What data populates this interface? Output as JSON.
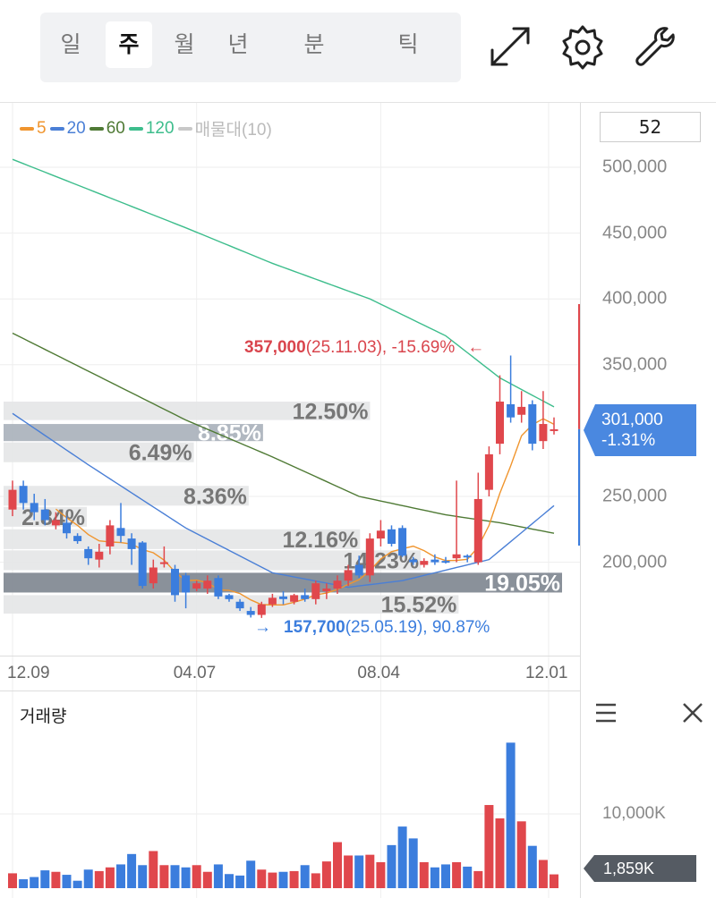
{
  "toolbar": {
    "tabs": [
      {
        "label": "일"
      },
      {
        "label": "주",
        "selected": true
      },
      {
        "label": "월"
      },
      {
        "label": "년"
      },
      {
        "label": "분"
      },
      {
        "label": "틱"
      }
    ],
    "icons": [
      "expand-icon",
      "gear-icon",
      "wrench-icon"
    ]
  },
  "legend": [
    {
      "label": "5",
      "color": "#f0952e"
    },
    {
      "label": "20",
      "color": "#4a7fd6"
    },
    {
      "label": "60",
      "color": "#4f7a35"
    },
    {
      "label": "120",
      "color": "#3dbd8c"
    },
    {
      "label": "매물대(10)",
      "color": "#c8c8c8"
    }
  ],
  "count_box": "52",
  "colors": {
    "up": "#e0474c",
    "down": "#3b7ddd",
    "zone": "#e4e5e7",
    "zone_max": "#7d858f",
    "zone_mid": "#a9b0ba"
  },
  "chart_data": {
    "type": "candlestick",
    "y_ticks": [
      "500,000",
      "450,000",
      "400,000",
      "350,000",
      "250,000",
      "200,000"
    ],
    "y_tick_values": [
      500000,
      450000,
      400000,
      350000,
      250000,
      200000
    ],
    "x_ticks": [
      {
        "label": "12.09",
        "index": 0
      },
      {
        "label": "04.07",
        "index": 17
      },
      {
        "label": "08.04",
        "index": 34
      },
      {
        "label": "12.01",
        "index": 49.5
      }
    ],
    "candles_ohlc_thousands": [
      [
        240,
        262,
        235,
        255
      ],
      [
        258,
        262,
        240,
        245
      ],
      [
        245,
        252,
        232,
        238
      ],
      [
        240,
        248,
        228,
        232
      ],
      [
        228,
        238,
        225,
        232
      ],
      [
        230,
        235,
        218,
        222
      ],
      [
        220,
        222,
        214,
        216
      ],
      [
        210,
        212,
        198,
        203
      ],
      [
        202,
        214,
        196,
        208
      ],
      [
        212,
        232,
        206,
        228
      ],
      [
        226,
        245,
        215,
        220
      ],
      [
        218,
        222,
        198,
        210
      ],
      [
        215,
        216,
        180,
        182
      ],
      [
        184,
        202,
        180,
        196
      ],
      [
        200,
        212,
        196,
        200
      ],
      [
        195,
        198,
        170,
        175
      ],
      [
        190,
        192,
        165,
        177
      ],
      [
        180,
        186,
        178,
        184
      ],
      [
        180,
        190,
        176,
        186
      ],
      [
        188,
        190,
        172,
        174
      ],
      [
        175,
        176,
        170,
        172
      ],
      [
        170,
        172,
        163,
        165
      ],
      [
        163,
        166,
        158,
        160
      ],
      [
        160,
        170,
        157.7,
        168
      ],
      [
        168,
        176,
        166,
        173
      ],
      [
        174,
        178,
        168,
        172
      ],
      [
        170,
        176,
        168,
        175
      ],
      [
        175,
        180,
        170,
        172
      ],
      [
        172,
        186,
        168,
        184
      ],
      [
        178,
        184,
        172,
        180
      ],
      [
        180,
        190,
        176,
        186
      ],
      [
        186,
        198,
        182,
        194
      ],
      [
        198,
        205,
        188,
        190
      ],
      [
        190,
        222,
        185,
        218
      ],
      [
        218,
        232,
        212,
        224
      ],
      [
        225,
        228,
        212,
        214
      ],
      [
        226,
        228,
        204,
        205
      ],
      [
        202,
        204,
        198,
        200
      ],
      [
        198,
        203,
        196,
        201
      ],
      [
        202,
        206,
        198,
        200
      ],
      [
        201,
        204,
        199,
        200
      ],
      [
        203,
        262,
        200,
        206
      ],
      [
        205,
        206,
        200,
        204
      ],
      [
        200,
        268,
        198,
        248
      ],
      [
        255,
        288,
        250,
        282
      ],
      [
        290,
        342,
        282,
        322
      ],
      [
        320,
        357,
        306,
        310
      ],
      [
        312,
        330,
        306,
        318
      ],
      [
        320,
        323,
        285,
        290
      ],
      [
        292,
        330,
        286,
        305
      ],
      [
        300,
        310,
        297,
        301
      ]
    ],
    "ma_lines": [
      {
        "name": "120",
        "color": "#3dbd8c",
        "points": [
          [
            0,
            506
          ],
          [
            8,
            480
          ],
          [
            16,
            454
          ],
          [
            24,
            427
          ],
          [
            33,
            400
          ],
          [
            40,
            372
          ],
          [
            45,
            340
          ],
          [
            50,
            318
          ]
        ]
      },
      {
        "name": "60",
        "color": "#4f7a35",
        "points": [
          [
            0,
            374
          ],
          [
            16,
            308
          ],
          [
            24,
            280
          ],
          [
            32,
            250
          ],
          [
            40,
            236
          ],
          [
            45,
            230
          ],
          [
            50,
            222
          ]
        ]
      },
      {
        "name": "20",
        "color": "#4a7fd6",
        "points": [
          [
            0,
            313
          ],
          [
            7,
            274
          ],
          [
            16,
            226
          ],
          [
            24,
            192
          ],
          [
            31,
            181
          ],
          [
            36,
            186
          ],
          [
            44,
            202
          ],
          [
            50,
            243
          ]
        ]
      }
    ],
    "ma5_color": "#f0952e",
    "volume_profile": [
      {
        "pct": "12.50%",
        "value": 12.5,
        "from": 308,
        "to": 322
      },
      {
        "pct": "8.85%",
        "value": 8.85,
        "from": 292,
        "to": 305,
        "current": true
      },
      {
        "pct": "6.49%",
        "value": 6.49,
        "from": 276,
        "to": 291
      },
      {
        "pct": "8.36%",
        "value": 8.36,
        "from": 243,
        "to": 258
      },
      {
        "pct": "2.84%",
        "value": 2.84,
        "from": 227,
        "to": 242
      },
      {
        "pct": "12.16%",
        "value": 12.16,
        "from": 210,
        "to": 225
      },
      {
        "pct": "14.23%",
        "value": 14.23,
        "from": 194,
        "to": 209
      },
      {
        "pct": "19.05%",
        "value": 19.05,
        "from": 177,
        "to": 192,
        "max": true
      },
      {
        "pct": "15.52%",
        "value": 15.52,
        "from": 161,
        "to": 175
      }
    ],
    "high_annotation": {
      "price": "357,000",
      "detail": "(25.11.03), -15.69%",
      "arrow": "←"
    },
    "low_annotation": {
      "price": "157,700",
      "detail": "(25.05.19), 90.87%",
      "arrow": "→"
    },
    "current": {
      "price": "301,000",
      "change": "-1.31%"
    },
    "volume": {
      "title": "거래량",
      "tick": "10,000K",
      "current": "1,859K",
      "values_k": [
        2000,
        1200,
        1500,
        2400,
        2200,
        1800,
        1000,
        2500,
        2300,
        2800,
        3200,
        4600,
        3100,
        5000,
        3100,
        3100,
        2800,
        3100,
        2200,
        3200,
        1900,
        1700,
        3700,
        2500,
        2100,
        2200,
        2300,
        3100,
        2000,
        3600,
        6200,
        4400,
        4400,
        4500,
        3500,
        5800,
        8300,
        6700,
        3500,
        2800,
        3200,
        3500,
        2900,
        2300,
        11200,
        9400,
        19600,
        9000,
        5700,
        3800,
        1859
      ]
    }
  }
}
